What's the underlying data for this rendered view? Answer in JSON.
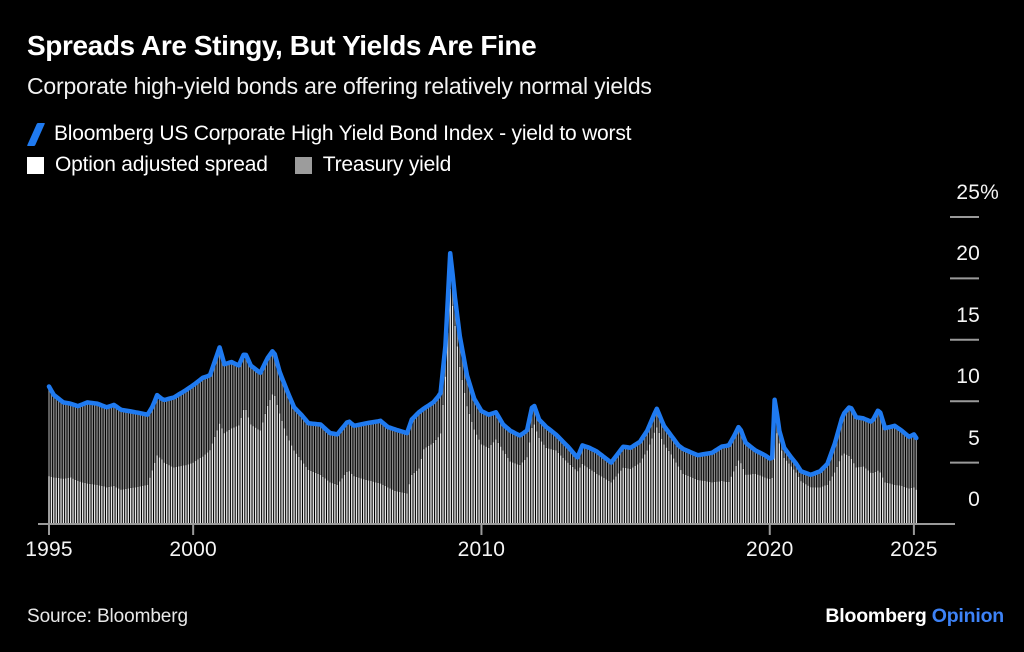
{
  "header": {
    "title": "Spreads Are Stingy, But Yields Are Fine",
    "subtitle": "Corporate high-yield bonds are offering relatively normal yields"
  },
  "legend": {
    "line_label": "Bloomberg US Corporate High Yield Bond Index - yield to worst",
    "spread_label": "Option adjusted spread",
    "treasury_label": "Treasury yield"
  },
  "footer": {
    "source": "Source: Bloomberg",
    "logo_black": "Bloomberg",
    "logo_blue": "Opinion"
  },
  "colors": {
    "background": "#000000",
    "line_blue": "#1f7af0",
    "bar_white": "#e8e8e8",
    "bar_gray": "#8a8a8a",
    "legend_white": "#ffffff",
    "legend_gray": "#9c9c9c",
    "axis_gray": "#9a9a9a",
    "logo_blue": "#3d82f6",
    "text_white": "#ffffff"
  },
  "chart_data": {
    "type": "bar",
    "subtype": "stacked-monthly-bars-with-line-overlay",
    "title": "Spreads Are Stingy, But Yields Are Fine",
    "xlabel": "",
    "ylabel": "percent",
    "xlim": [
      1995,
      2025.4
    ],
    "ylim": [
      0,
      25
    ],
    "grid": false,
    "legend_position": "top-left",
    "x_ticks": [
      {
        "value": 1995,
        "label": "1995"
      },
      {
        "value": 2000,
        "label": "2000"
      },
      {
        "value": 2010,
        "label": "2010"
      },
      {
        "value": 2020,
        "label": "2020"
      },
      {
        "value": 2025,
        "label": "2025"
      }
    ],
    "y_ticks": [
      {
        "value": 25,
        "label": "25%"
      },
      {
        "value": 20,
        "label": "20"
      },
      {
        "value": 15,
        "label": "15"
      },
      {
        "value": 10,
        "label": "10"
      },
      {
        "value": 5,
        "label": "5"
      },
      {
        "value": 0,
        "label": "0"
      }
    ],
    "series": [
      {
        "name": "Bloomberg US Corporate High Yield Bond Index - yield to worst",
        "render": "line",
        "color": "#1f7af0",
        "field": "yield_to_worst"
      },
      {
        "name": "Option adjusted spread",
        "render": "bar-bottom-segment",
        "color": "#e8e8e8",
        "field": "spread"
      },
      {
        "name": "Treasury yield",
        "render": "bar-top-segment",
        "color": "#8a8a8a",
        "field": "treasury",
        "note": "treasury = yield_to_worst - spread"
      }
    ],
    "points_format": [
      "year_decimal",
      "yield_to_worst_pct",
      "option_adjusted_spread_pct"
    ],
    "points": [
      [
        1995.0,
        11.2,
        3.9
      ],
      [
        1995.17,
        10.5,
        3.8
      ],
      [
        1995.5,
        9.9,
        3.7
      ],
      [
        1995.75,
        9.8,
        3.8
      ],
      [
        1996.0,
        9.6,
        3.5
      ],
      [
        1996.33,
        9.9,
        3.3
      ],
      [
        1996.67,
        9.8,
        3.2
      ],
      [
        1997.0,
        9.5,
        3.0
      ],
      [
        1997.25,
        9.7,
        3.1
      ],
      [
        1997.5,
        9.3,
        2.8
      ],
      [
        1997.75,
        9.2,
        2.9
      ],
      [
        1998.0,
        9.1,
        3.0
      ],
      [
        1998.42,
        8.9,
        3.2
      ],
      [
        1998.6,
        9.6,
        4.5
      ],
      [
        1998.75,
        10.5,
        5.6
      ],
      [
        1998.9,
        10.2,
        5.3
      ],
      [
        1999.0,
        10.1,
        5.0
      ],
      [
        1999.33,
        10.3,
        4.6
      ],
      [
        1999.75,
        10.9,
        4.8
      ],
      [
        2000.0,
        11.3,
        5.0
      ],
      [
        2000.33,
        11.9,
        5.5
      ],
      [
        2000.58,
        12.1,
        6.0
      ],
      [
        2000.92,
        14.4,
        8.2
      ],
      [
        2001.08,
        13.0,
        7.4
      ],
      [
        2001.33,
        13.2,
        7.8
      ],
      [
        2001.58,
        12.9,
        8.0
      ],
      [
        2001.79,
        14.0,
        9.6
      ],
      [
        2002.0,
        12.9,
        8.1
      ],
      [
        2002.33,
        12.3,
        7.6
      ],
      [
        2002.58,
        13.5,
        9.6
      ],
      [
        2002.79,
        14.2,
        10.8
      ],
      [
        2003.0,
        12.4,
        9.0
      ],
      [
        2003.25,
        10.9,
        7.2
      ],
      [
        2003.5,
        9.5,
        6.0
      ],
      [
        2003.75,
        8.9,
        5.2
      ],
      [
        2004.0,
        8.2,
        4.4
      ],
      [
        2004.42,
        8.1,
        4.0
      ],
      [
        2004.75,
        7.4,
        3.4
      ],
      [
        2005.0,
        7.3,
        3.2
      ],
      [
        2005.38,
        8.4,
        4.4
      ],
      [
        2005.58,
        8.0,
        3.9
      ],
      [
        2006.0,
        8.2,
        3.6
      ],
      [
        2006.5,
        8.4,
        3.3
      ],
      [
        2006.75,
        7.9,
        3.0
      ],
      [
        2007.0,
        7.7,
        2.7
      ],
      [
        2007.42,
        7.4,
        2.5
      ],
      [
        2007.58,
        8.5,
        4.0
      ],
      [
        2007.83,
        9.1,
        4.5
      ],
      [
        2008.0,
        9.4,
        6.1
      ],
      [
        2008.33,
        9.9,
        6.6
      ],
      [
        2008.58,
        10.6,
        7.3
      ],
      [
        2008.75,
        14.5,
        12.0
      ],
      [
        2008.92,
        22.2,
        19.3
      ],
      [
        2009.08,
        18.5,
        16.2
      ],
      [
        2009.25,
        15.3,
        12.8
      ],
      [
        2009.5,
        12.1,
        9.6
      ],
      [
        2009.75,
        10.2,
        7.7
      ],
      [
        2010.0,
        9.2,
        6.5
      ],
      [
        2010.25,
        8.9,
        6.2
      ],
      [
        2010.5,
        9.1,
        6.9
      ],
      [
        2010.75,
        8.1,
        6.0
      ],
      [
        2011.0,
        7.6,
        5.1
      ],
      [
        2011.33,
        7.2,
        4.8
      ],
      [
        2011.58,
        7.6,
        5.4
      ],
      [
        2011.79,
        9.9,
        8.4
      ],
      [
        2012.0,
        8.5,
        7.0
      ],
      [
        2012.25,
        7.9,
        6.2
      ],
      [
        2012.58,
        7.3,
        6.0
      ],
      [
        2013.0,
        6.3,
        5.0
      ],
      [
        2013.33,
        5.4,
        4.3
      ],
      [
        2013.5,
        6.4,
        4.9
      ],
      [
        2013.75,
        6.2,
        4.5
      ],
      [
        2014.0,
        5.9,
        4.1
      ],
      [
        2014.5,
        5.0,
        3.4
      ],
      [
        2014.92,
        6.3,
        4.6
      ],
      [
        2015.17,
        6.2,
        4.5
      ],
      [
        2015.5,
        6.7,
        5.0
      ],
      [
        2015.75,
        7.6,
        6.0
      ],
      [
        2016.08,
        9.4,
        7.9
      ],
      [
        2016.33,
        8.0,
        6.5
      ],
      [
        2016.58,
        7.2,
        5.7
      ],
      [
        2016.83,
        6.4,
        4.7
      ],
      [
        2017.0,
        6.1,
        4.1
      ],
      [
        2017.5,
        5.6,
        3.6
      ],
      [
        2018.0,
        5.8,
        3.4
      ],
      [
        2018.33,
        6.3,
        3.5
      ],
      [
        2018.58,
        6.4,
        3.4
      ],
      [
        2018.75,
        7.1,
        4.3
      ],
      [
        2018.94,
        8.0,
        5.3
      ],
      [
        2019.17,
        6.6,
        4.0
      ],
      [
        2019.5,
        6.0,
        4.1
      ],
      [
        2019.83,
        5.6,
        3.8
      ],
      [
        2020.08,
        5.2,
        3.6
      ],
      [
        2020.17,
        10.3,
        8.2
      ],
      [
        2020.33,
        7.6,
        6.6
      ],
      [
        2020.5,
        6.2,
        5.4
      ],
      [
        2020.75,
        5.4,
        4.7
      ],
      [
        2020.92,
        4.9,
        4.2
      ],
      [
        2021.08,
        4.3,
        3.5
      ],
      [
        2021.42,
        4.0,
        3.0
      ],
      [
        2021.75,
        4.3,
        3.0
      ],
      [
        2022.0,
        4.9,
        3.2
      ],
      [
        2022.25,
        6.5,
        4.2
      ],
      [
        2022.54,
        8.9,
        5.8
      ],
      [
        2022.79,
        9.6,
        5.5
      ],
      [
        2023.0,
        8.7,
        4.6
      ],
      [
        2023.25,
        8.6,
        4.7
      ],
      [
        2023.54,
        8.3,
        4.1
      ],
      [
        2023.79,
        9.4,
        4.4
      ],
      [
        2024.0,
        7.8,
        3.4
      ],
      [
        2024.33,
        8.0,
        3.2
      ],
      [
        2024.58,
        7.6,
        3.1
      ],
      [
        2024.83,
        7.1,
        2.9
      ],
      [
        2025.0,
        7.3,
        3.0
      ],
      [
        2025.08,
        7.0,
        2.8
      ]
    ]
  }
}
